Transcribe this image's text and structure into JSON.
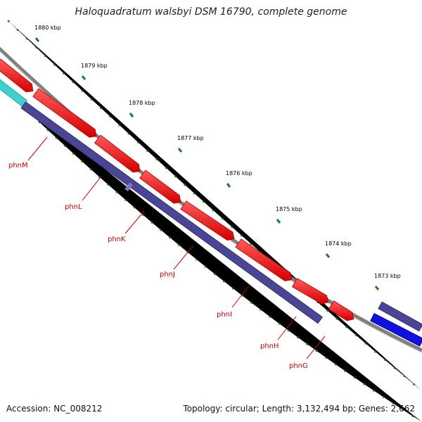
{
  "title": "Haloquadratum walsbyi DSM 16790, complete genome",
  "accession": "Accession: NC_008212",
  "topology": "Topology: circular; Length: 3,132,494 bp; Genes: 2,662",
  "kbp_ticks": [
    "1880 kbp",
    "1879 kbp",
    "1878 kbp",
    "1877 kbp",
    "1876 kbp",
    "1875 kbp",
    "1874 kbp",
    "1873 kbp"
  ],
  "genes": [
    "phnM",
    "phnL",
    "phnK",
    "phnJ",
    "phnI",
    "phnH",
    "phnG"
  ],
  "colors": {
    "backbone": "#808080",
    "forward_gene": "#ff0000",
    "reverse_gene": "#4b4596",
    "cyan_gene": "#40d0d0",
    "blue_gene": "#1010e0",
    "tick": "#1a7a1a",
    "gene_label": "#cc0000",
    "tick_label": "#000000"
  }
}
